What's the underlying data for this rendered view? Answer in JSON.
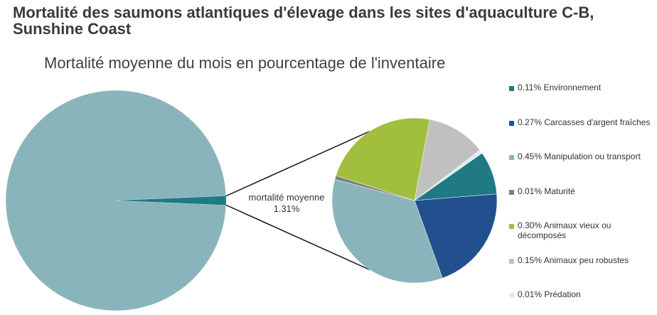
{
  "title": "Mortalité des saumons atlantiques d'élevage dans les sites d'aquaculture C-B, Sunshine Coast",
  "chart_data": {
    "type": "pie",
    "subtitle": "Mortalité moyenne du mois en pourcentage de l'inventaire",
    "center_label": {
      "line1": "mortalité moyenne",
      "line2": "1.31%"
    },
    "main_pie": {
      "total": 100,
      "mortality_share": 1.31,
      "remainder_color": "#8ab4bc",
      "mortality_color": "#1f7a84"
    },
    "breakdown": {
      "categories": [
        "Environnement",
        "Carcasses d'argent fraîches",
        "Manipulation ou transport",
        "Maturité",
        "Animaux vieux ou décomposés",
        "Animaux peu robustes",
        "Prédation"
      ],
      "values": [
        0.11,
        0.27,
        0.45,
        0.01,
        0.3,
        0.15,
        0.01
      ],
      "labels": [
        "0.11% Environnement",
        "0.27% Carcasses d'argent fraîches",
        "0.45% Manipulation ou transport",
        "0.01% Maturité",
        "0.30% Animaux vieux ou décomposés",
        "0.15% Animaux peu robustes",
        "0.01% Prédation"
      ],
      "colors": [
        "#1f7a84",
        "#22508f",
        "#8ab4bc",
        "#808080",
        "#a1be3c",
        "#c0c0c0",
        "#e0ecef"
      ]
    },
    "legend_position": "right"
  }
}
